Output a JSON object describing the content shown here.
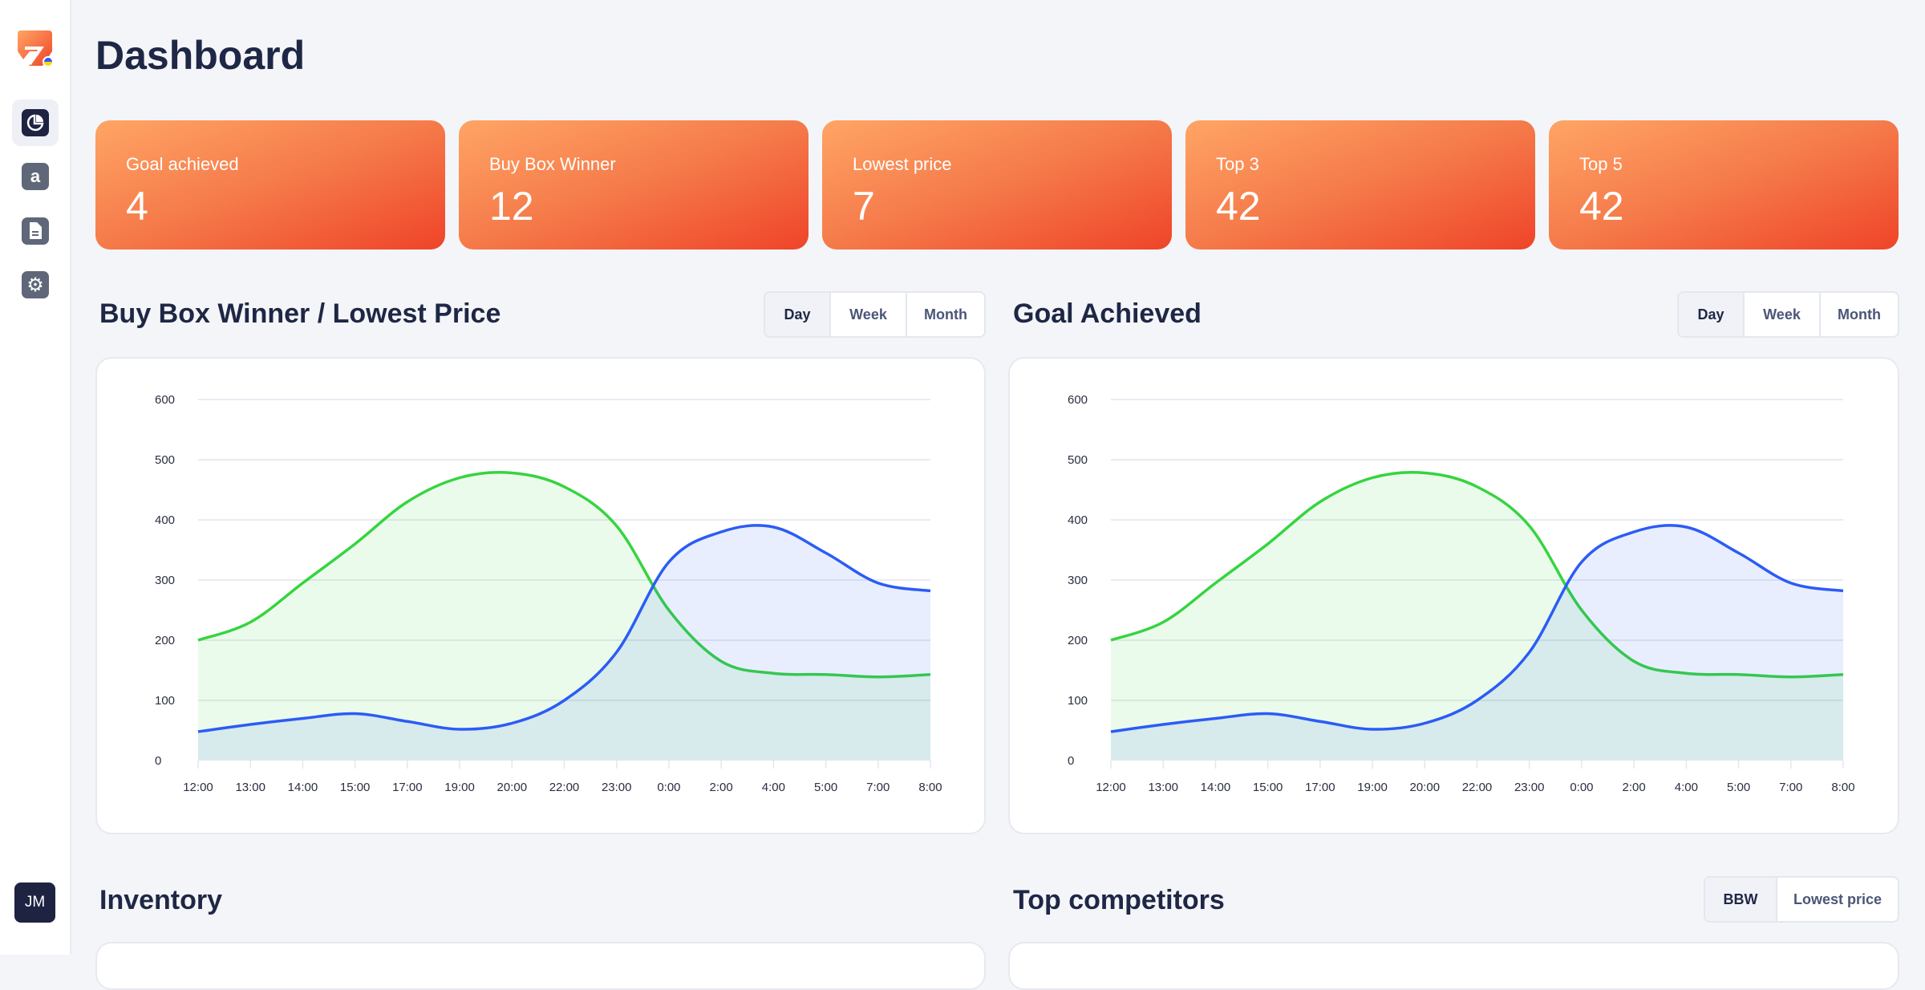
{
  "sidebar": {
    "items": [
      {
        "icon": "pie-chart-icon",
        "active": true
      },
      {
        "icon": "amazon-icon"
      },
      {
        "icon": "document-icon"
      },
      {
        "icon": "gear-icon"
      }
    ],
    "avatar": "JM"
  },
  "page_title": "Dashboard",
  "stats": [
    {
      "label": "Goal achieved",
      "value": "4"
    },
    {
      "label": "Buy Box Winner",
      "value": "12"
    },
    {
      "label": "Lowest price",
      "value": "7"
    },
    {
      "label": "Top 3",
      "value": "42"
    },
    {
      "label": "Top 5",
      "value": "42"
    }
  ],
  "sections": {
    "bbw": {
      "title": "Buy Box Winner / Lowest Price",
      "toggle": [
        "Day",
        "Week",
        "Month"
      ],
      "selected": "Day"
    },
    "goal": {
      "title": "Goal Achieved",
      "toggle": [
        "Day",
        "Week",
        "Month"
      ],
      "selected": "Day"
    },
    "inventory": {
      "title": "Inventory"
    },
    "competitors": {
      "title": "Top competitors",
      "toggle": [
        "BBW",
        "Lowest price"
      ],
      "selected": "BBW"
    }
  },
  "colors": {
    "green": "#36d43f",
    "blue": "#2b5cf5",
    "accent_start": "#ffa565",
    "accent_end": "#ef4428"
  },
  "chart_data": [
    {
      "type": "area",
      "x": [
        "12:00",
        "13:00",
        "14:00",
        "15:00",
        "17:00",
        "19:00",
        "20:00",
        "22:00",
        "23:00",
        "0:00",
        "2:00",
        "4:00",
        "5:00",
        "7:00",
        "8:00"
      ],
      "ylim": [
        0,
        600
      ],
      "yticks": [
        0,
        100,
        200,
        300,
        400,
        500,
        600
      ],
      "grid": true,
      "series": [
        {
          "color": "#36d43f",
          "values": [
            200,
            230,
            295,
            360,
            430,
            470,
            478,
            455,
            390,
            250,
            165,
            145,
            143,
            139,
            143
          ]
        },
        {
          "color": "#2b5cf5",
          "values": [
            48,
            60,
            70,
            78,
            65,
            52,
            62,
            100,
            180,
            330,
            380,
            388,
            345,
            295,
            282
          ]
        }
      ]
    },
    {
      "type": "area",
      "x": [
        "12:00",
        "13:00",
        "14:00",
        "15:00",
        "17:00",
        "19:00",
        "20:00",
        "22:00",
        "23:00",
        "0:00",
        "2:00",
        "4:00",
        "5:00",
        "7:00",
        "8:00"
      ],
      "ylim": [
        0,
        600
      ],
      "yticks": [
        0,
        100,
        200,
        300,
        400,
        500,
        600
      ],
      "grid": true,
      "series": [
        {
          "color": "#36d43f",
          "values": [
            200,
            230,
            295,
            360,
            430,
            470,
            478,
            455,
            390,
            250,
            165,
            145,
            143,
            139,
            143
          ]
        },
        {
          "color": "#2b5cf5",
          "values": [
            48,
            60,
            70,
            78,
            65,
            52,
            62,
            100,
            180,
            330,
            380,
            388,
            345,
            295,
            282
          ]
        }
      ]
    }
  ]
}
